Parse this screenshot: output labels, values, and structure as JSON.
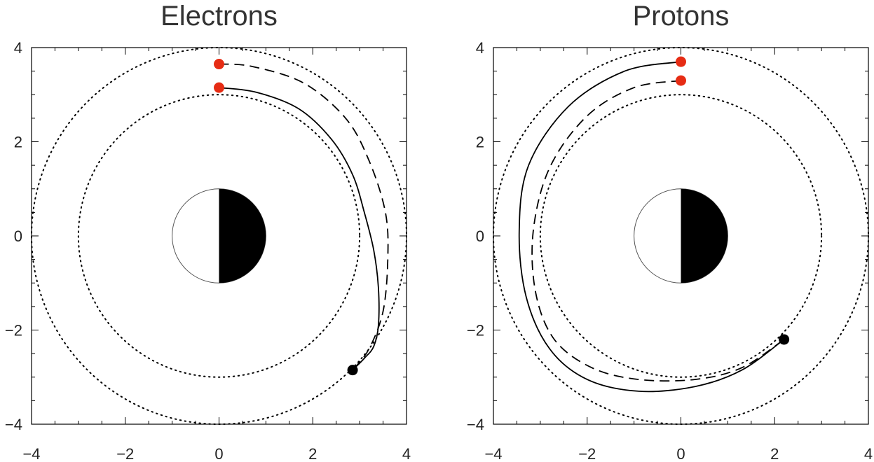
{
  "chart_data": [
    {
      "type": "scatter",
      "title": "Electrons",
      "xlabel": "",
      "ylabel": "",
      "xlim": [
        -4,
        4
      ],
      "ylim": [
        -4,
        4
      ],
      "x_ticks": [
        -4,
        -2,
        0,
        2,
        4
      ],
      "y_ticks": [
        -4,
        -2,
        0,
        2,
        4
      ],
      "x_tick_labels": [
        "−4",
        "−2",
        "0",
        "2",
        "4"
      ],
      "y_tick_labels": [
        "−4",
        "−2",
        "0",
        "2",
        "4"
      ],
      "grid": false,
      "reference_circles": [
        {
          "radius": 3,
          "style": "dotted"
        },
        {
          "radius": 4,
          "style": "dotted"
        }
      ],
      "central_body": {
        "radius": 1,
        "left_half": "#ffffff",
        "right_half": "#000000"
      },
      "series": [
        {
          "style": "dashed",
          "x": [
            0,
            0.7,
            1.8,
            2.7,
            3.2,
            3.55,
            3.6,
            3.5,
            3.2,
            2.85
          ],
          "y": [
            3.65,
            3.6,
            3.25,
            2.5,
            1.6,
            0.5,
            -0.5,
            -1.6,
            -2.4,
            -2.85
          ]
        },
        {
          "style": "solid",
          "x": [
            0,
            0.8,
            1.7,
            2.4,
            2.85,
            3.1,
            3.3,
            3.4,
            3.4,
            3.3,
            3.1,
            2.85
          ],
          "y": [
            3.15,
            3.05,
            2.7,
            2.05,
            1.3,
            0.5,
            -0.3,
            -1.1,
            -1.9,
            -2.35,
            -2.6,
            -2.85
          ]
        }
      ],
      "points": [
        {
          "x": 0,
          "y": 3.65,
          "color": "#e62c14"
        },
        {
          "x": 0,
          "y": 3.15,
          "color": "#e62c14"
        },
        {
          "x": 2.85,
          "y": -2.85,
          "color": "#000000"
        }
      ]
    },
    {
      "type": "scatter",
      "title": "Protons",
      "xlabel": "",
      "ylabel": "",
      "xlim": [
        -4,
        4
      ],
      "ylim": [
        -4,
        4
      ],
      "x_ticks": [
        -4,
        -2,
        0,
        2,
        4
      ],
      "y_ticks": [
        -4,
        -2,
        0,
        2,
        4
      ],
      "x_tick_labels": [
        "−4",
        "−2",
        "0",
        "2",
        "4"
      ],
      "y_tick_labels": [
        "−4",
        "−2",
        "0",
        "2",
        "4"
      ],
      "grid": false,
      "reference_circles": [
        {
          "radius": 3,
          "style": "dotted"
        },
        {
          "radius": 4,
          "style": "dotted"
        }
      ],
      "central_body": {
        "radius": 1,
        "left_half": "#ffffff",
        "right_half": "#000000"
      },
      "series": [
        {
          "style": "solid",
          "x": [
            0,
            -1.2,
            -2.4,
            -3.25,
            -3.45,
            -3.3,
            -2.8,
            -2.0,
            -0.9,
            0.3,
            1.3,
            2.2
          ],
          "y": [
            3.7,
            3.5,
            2.75,
            1.5,
            0.1,
            -1.3,
            -2.4,
            -3.05,
            -3.3,
            -3.2,
            -2.85,
            -2.2
          ]
        },
        {
          "style": "dashed",
          "x": [
            0,
            -1.0,
            -2.0,
            -2.8,
            -3.15,
            -3.1,
            -2.7,
            -1.9,
            -0.9,
            0.3,
            1.3,
            2.2
          ],
          "y": [
            3.3,
            3.15,
            2.55,
            1.45,
            0.1,
            -1.2,
            -2.2,
            -2.8,
            -3.05,
            -3.05,
            -2.8,
            -2.2
          ]
        }
      ],
      "points": [
        {
          "x": 0,
          "y": 3.7,
          "color": "#e62c14"
        },
        {
          "x": 0,
          "y": 3.3,
          "color": "#e62c14"
        },
        {
          "x": 2.2,
          "y": -2.2,
          "color": "#000000"
        }
      ]
    }
  ]
}
